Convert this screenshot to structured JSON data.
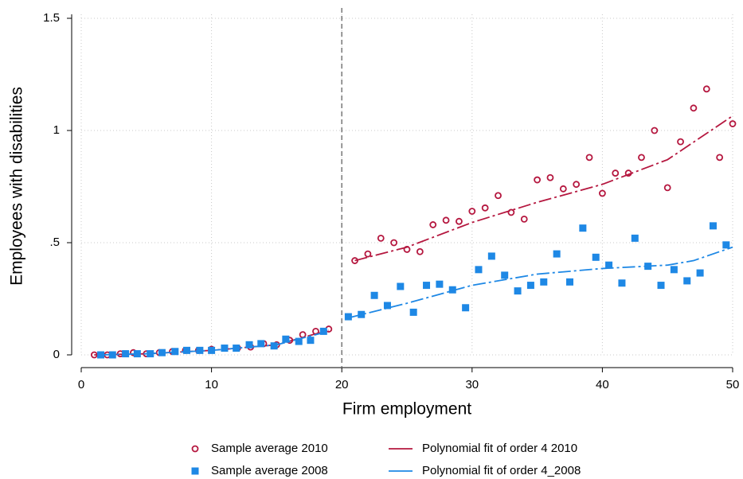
{
  "chart_data": {
    "type": "scatter",
    "x_label": "Firm employment",
    "y_label": "Employees with disabilities",
    "xlim": [
      0,
      50
    ],
    "xticks": [
      0,
      10,
      20,
      30,
      40,
      50
    ],
    "ylim": [
      0,
      1.5
    ],
    "yticks": [
      0,
      {
        "value": 0.5,
        "label": ".5"
      },
      1,
      1.5
    ],
    "grid": true,
    "vline": 20,
    "legend_position": "bottom",
    "series": [
      {
        "name": "Sample average 2010",
        "type": "scatter",
        "marker": "hollow-circle",
        "color": "#b5173f",
        "x": [
          1,
          2,
          3,
          4,
          5,
          6,
          7,
          8,
          9,
          10,
          11,
          12,
          13,
          14,
          15,
          16,
          17,
          18,
          19,
          21,
          22,
          23,
          24,
          25,
          26,
          27,
          28,
          29,
          30,
          31,
          32,
          33,
          34,
          35,
          36,
          37,
          38,
          39,
          40,
          41,
          42,
          43,
          44,
          45,
          46,
          47,
          48,
          49,
          50
        ],
        "values": [
          0,
          0,
          0.005,
          0.01,
          0.005,
          0.01,
          0.015,
          0.02,
          0.02,
          0.025,
          0.03,
          0.03,
          0.035,
          0.05,
          0.045,
          0.065,
          0.09,
          0.105,
          0.115,
          0.42,
          0.45,
          0.52,
          0.5,
          0.47,
          0.46,
          0.58,
          0.6,
          0.595,
          0.64,
          0.655,
          0.71,
          0.635,
          0.605,
          0.78,
          0.79,
          0.74,
          0.76,
          0.88,
          0.72,
          0.81,
          0.81,
          0.88,
          1.0,
          0.745,
          0.95,
          1.1,
          1.185,
          0.88,
          1.03
        ]
      },
      {
        "name": "Polynomial fit of order 4 2010",
        "type": "line",
        "color": "#b5173f",
        "x": [
          1,
          5,
          10,
          15,
          19,
          20,
          21,
          25,
          30,
          35,
          40,
          45,
          50
        ],
        "values": [
          0,
          0.005,
          0.02,
          0.045,
          0.11,
          null,
          0.42,
          0.48,
          0.59,
          0.68,
          0.76,
          0.87,
          1.065
        ]
      },
      {
        "name": "Sample average 2008",
        "type": "scatter",
        "marker": "square",
        "color": "#1e88e5",
        "x": [
          1.5,
          2.4,
          3.4,
          4.3,
          5.3,
          6.2,
          7.2,
          8.1,
          9.1,
          10,
          11,
          11.9,
          12.9,
          13.8,
          14.8,
          15.7,
          16.7,
          17.6,
          18.6,
          20.5,
          21.5,
          22.5,
          23.5,
          24.5,
          25.5,
          26.5,
          27.5,
          28.5,
          29.5,
          30.5,
          31.5,
          32.5,
          33.5,
          34.5,
          35.5,
          36.5,
          37.5,
          38.5,
          39.5,
          40.5,
          41.5,
          42.5,
          43.5,
          44.5,
          45.5,
          46.5,
          47.5,
          48.5,
          49.5
        ],
        "values": [
          0,
          0,
          0.005,
          0.005,
          0.005,
          0.01,
          0.015,
          0.02,
          0.02,
          0.02,
          0.03,
          0.03,
          0.045,
          0.05,
          0.04,
          0.07,
          0.06,
          0.065,
          0.105,
          0.17,
          0.18,
          0.265,
          0.22,
          0.305,
          0.19,
          0.31,
          0.315,
          0.29,
          0.21,
          0.38,
          0.44,
          0.355,
          0.285,
          0.31,
          0.325,
          0.45,
          0.325,
          0.565,
          0.435,
          0.4,
          0.32,
          0.52,
          0.395,
          0.31,
          0.38,
          0.33,
          0.365,
          0.575,
          0.49
        ]
      },
      {
        "name": "Polynomial fit of order 4_2008",
        "type": "line",
        "color": "#1e88e5",
        "x": [
          1.5,
          5,
          10,
          15,
          19,
          20,
          20.5,
          25,
          30,
          35,
          40,
          45,
          47,
          50
        ],
        "values": [
          0,
          0.005,
          0.02,
          0.045,
          0.105,
          null,
          0.165,
          0.23,
          0.31,
          0.36,
          0.385,
          0.4,
          0.42,
          0.48
        ]
      }
    ]
  }
}
